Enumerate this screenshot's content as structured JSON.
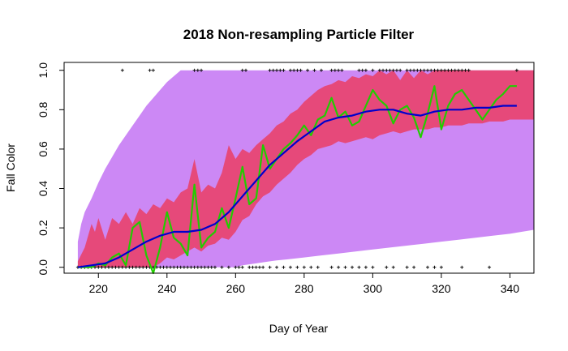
{
  "chart_data": {
    "type": "line",
    "title": "2018 Non-resampling Particle Filter",
    "xlabel": "Day of Year",
    "ylabel": "Fall Color",
    "xlim": [
      210,
      347
    ],
    "ylim": [
      -0.03,
      1.04
    ],
    "xticks": [
      220,
      240,
      260,
      280,
      300,
      320,
      340
    ],
    "yticks": [
      0.0,
      0.2,
      0.4,
      0.6,
      0.8,
      1.0
    ],
    "grid": false,
    "legend": "none",
    "colors": {
      "outer_band": "#cc88f5",
      "inner_band": "#e6497a",
      "observed": "#22cc00",
      "mean": "#0000cc",
      "points": "#000000"
    },
    "outer_band": {
      "x": [
        214,
        215,
        216,
        218,
        220,
        222,
        224,
        226,
        228,
        230,
        232,
        234,
        236,
        238,
        240,
        242,
        244,
        246,
        248,
        250,
        252,
        254,
        256,
        258,
        260,
        262,
        264,
        266,
        268,
        270,
        272,
        275,
        280,
        285,
        290,
        295,
        300,
        305,
        310,
        315,
        320,
        325,
        330,
        335,
        340,
        347
      ],
      "upper": [
        0.13,
        0.22,
        0.28,
        0.35,
        0.43,
        0.5,
        0.56,
        0.62,
        0.67,
        0.72,
        0.77,
        0.82,
        0.86,
        0.9,
        0.94,
        0.97,
        1.0,
        1.0,
        1.0,
        1.0,
        1.0,
        1.0,
        1.0,
        1.0,
        1.0,
        1.0,
        1.0,
        1.0,
        1.0,
        1.0,
        1.0,
        1.0,
        1.0,
        1.0,
        1.0,
        1.0,
        1.0,
        1.0,
        1.0,
        1.0,
        1.0,
        1.0,
        1.0,
        1.0,
        1.0,
        1.0
      ],
      "lower": [
        0.0,
        0.0,
        0.0,
        0.0,
        0.0,
        0.0,
        0.0,
        0.0,
        0.0,
        0.0,
        0.0,
        0.0,
        0.0,
        0.0,
        0.0,
        0.0,
        0.0,
        0.0,
        0.0,
        0.0,
        0.0,
        0.0,
        0.0,
        0.0,
        0.0,
        0.01,
        0.015,
        0.02,
        0.025,
        0.03,
        0.035,
        0.04,
        0.05,
        0.06,
        0.07,
        0.08,
        0.09,
        0.1,
        0.11,
        0.12,
        0.13,
        0.14,
        0.15,
        0.16,
        0.17,
        0.19
      ]
    },
    "inner_band": {
      "x": [
        214,
        216,
        218,
        219,
        220,
        222,
        224,
        226,
        228,
        230,
        232,
        234,
        236,
        238,
        240,
        242,
        244,
        246,
        248,
        250,
        252,
        254,
        256,
        258,
        260,
        262,
        264,
        266,
        268,
        270,
        272,
        274,
        276,
        278,
        280,
        282,
        284,
        286,
        288,
        290,
        292,
        294,
        296,
        298,
        300,
        302,
        304,
        306,
        308,
        310,
        312,
        314,
        316,
        318,
        320,
        322,
        324,
        326,
        328,
        330,
        332,
        334,
        336,
        338,
        340,
        342,
        347
      ],
      "upper": [
        0.03,
        0.1,
        0.22,
        0.18,
        0.25,
        0.14,
        0.25,
        0.22,
        0.28,
        0.22,
        0.3,
        0.27,
        0.32,
        0.3,
        0.35,
        0.33,
        0.38,
        0.4,
        0.55,
        0.38,
        0.42,
        0.4,
        0.48,
        0.62,
        0.55,
        0.6,
        0.58,
        0.62,
        0.65,
        0.68,
        0.72,
        0.74,
        0.78,
        0.8,
        0.84,
        0.87,
        0.9,
        0.92,
        0.93,
        0.95,
        0.94,
        0.97,
        0.96,
        0.98,
        0.97,
        1.0,
        0.98,
        1.0,
        0.95,
        1.0,
        0.96,
        1.0,
        0.98,
        1.0,
        1.0,
        1.0,
        1.0,
        1.0,
        1.0,
        1.0,
        1.0,
        1.0,
        1.0,
        1.0,
        1.0,
        1.0,
        1.0
      ],
      "lower": [
        0.0,
        0.0,
        0.0,
        0.0,
        0.0,
        0.0,
        0.0,
        0.0,
        0.0,
        0.0,
        0.0,
        0.0,
        0.0,
        0.02,
        0.05,
        0.04,
        0.06,
        0.08,
        0.1,
        0.08,
        0.11,
        0.12,
        0.15,
        0.14,
        0.18,
        0.24,
        0.26,
        0.32,
        0.36,
        0.38,
        0.42,
        0.45,
        0.48,
        0.52,
        0.55,
        0.57,
        0.6,
        0.61,
        0.62,
        0.64,
        0.63,
        0.64,
        0.65,
        0.66,
        0.65,
        0.67,
        0.68,
        0.69,
        0.68,
        0.69,
        0.7,
        0.7,
        0.7,
        0.71,
        0.71,
        0.72,
        0.72,
        0.72,
        0.73,
        0.73,
        0.73,
        0.74,
        0.74,
        0.74,
        0.75,
        0.75,
        0.75
      ]
    },
    "series": [
      {
        "key": "observed",
        "x": [
          214,
          216,
          218,
          220,
          222,
          224,
          226,
          228,
          230,
          232,
          234,
          236,
          238,
          240,
          242,
          244,
          246,
          248,
          250,
          252,
          254,
          256,
          258,
          260,
          262,
          264,
          266,
          268,
          270,
          272,
          274,
          276,
          278,
          280,
          282,
          284,
          286,
          288,
          290,
          292,
          294,
          296,
          298,
          300,
          302,
          304,
          306,
          308,
          310,
          312,
          314,
          316,
          318,
          320,
          322,
          324,
          326,
          328,
          330,
          332,
          334,
          336,
          338,
          340,
          342
        ],
        "values": [
          0.0,
          0.0,
          0.0,
          0.02,
          0.01,
          0.05,
          0.07,
          0.01,
          0.2,
          0.23,
          0.06,
          -0.03,
          0.1,
          0.28,
          0.15,
          0.12,
          0.06,
          0.42,
          0.1,
          0.15,
          0.18,
          0.3,
          0.2,
          0.35,
          0.51,
          0.32,
          0.35,
          0.62,
          0.5,
          0.55,
          0.6,
          0.63,
          0.67,
          0.72,
          0.67,
          0.75,
          0.77,
          0.86,
          0.76,
          0.79,
          0.72,
          0.74,
          0.82,
          0.9,
          0.85,
          0.82,
          0.73,
          0.8,
          0.82,
          0.76,
          0.66,
          0.78,
          0.92,
          0.7,
          0.82,
          0.88,
          0.9,
          0.85,
          0.8,
          0.75,
          0.8,
          0.85,
          0.88,
          0.92,
          0.92
        ]
      },
      {
        "key": "mean",
        "x": [
          214,
          218,
          222,
          226,
          230,
          234,
          238,
          242,
          246,
          250,
          254,
          258,
          262,
          266,
          270,
          274,
          278,
          282,
          286,
          290,
          294,
          298,
          302,
          306,
          310,
          314,
          318,
          322,
          326,
          330,
          334,
          338,
          342
        ],
        "values": [
          0.0,
          0.01,
          0.02,
          0.05,
          0.09,
          0.13,
          0.16,
          0.18,
          0.18,
          0.19,
          0.22,
          0.28,
          0.36,
          0.44,
          0.52,
          0.58,
          0.64,
          0.69,
          0.74,
          0.76,
          0.77,
          0.79,
          0.8,
          0.8,
          0.78,
          0.77,
          0.79,
          0.8,
          0.8,
          0.81,
          0.81,
          0.82,
          0.82
        ]
      }
    ],
    "points": {
      "x": [
        214,
        215,
        216,
        217,
        218,
        219,
        220,
        221,
        222,
        223,
        224,
        225,
        226,
        227,
        228,
        229,
        230,
        231,
        232,
        233,
        234,
        235,
        236,
        237,
        238,
        239,
        240,
        241,
        242,
        243,
        244,
        245,
        246,
        247,
        248,
        249,
        250,
        251,
        252,
        253,
        254,
        256,
        258,
        260,
        261,
        262,
        264,
        265,
        266,
        267,
        268,
        270,
        272,
        274,
        276,
        278,
        280,
        282,
        284,
        288,
        290,
        292,
        294,
        296,
        298,
        300,
        304,
        306,
        310,
        312,
        316,
        318,
        320,
        326,
        334,
        227,
        235,
        236,
        248,
        249,
        250,
        262,
        263,
        270,
        271,
        272,
        273,
        274,
        276,
        277,
        278,
        279,
        281,
        283,
        285,
        288,
        289,
        290,
        291,
        296,
        297,
        298,
        300,
        302,
        303,
        304,
        305,
        306,
        307,
        308,
        310,
        311,
        312,
        313,
        314,
        315,
        316,
        317,
        318,
        319,
        320,
        321,
        322,
        323,
        324,
        325,
        326,
        327,
        328,
        342
      ],
      "y": [
        0,
        0,
        0,
        0,
        0,
        0,
        0,
        0,
        0,
        0,
        0,
        0,
        0,
        0,
        0,
        0,
        0,
        0,
        0,
        0,
        0,
        0,
        0,
        0,
        0,
        0,
        0,
        0,
        0,
        0,
        0,
        0,
        0,
        0,
        0,
        0,
        0,
        0,
        0,
        0,
        0,
        0,
        0,
        0,
        0,
        0,
        0,
        0,
        0,
        0,
        0,
        0,
        0,
        0,
        0,
        0,
        0,
        0,
        0,
        0,
        0,
        0,
        0,
        0,
        0,
        0,
        0,
        0,
        0,
        0,
        0,
        0,
        0,
        0,
        0,
        1,
        1,
        1,
        1,
        1,
        1,
        1,
        1,
        1,
        1,
        1,
        1,
        1,
        1,
        1,
        1,
        1,
        1,
        1,
        1,
        1,
        1,
        1,
        1,
        1,
        1,
        1,
        1,
        1,
        1,
        1,
        1,
        1,
        1,
        1,
        1,
        1,
        1,
        1,
        1,
        1,
        1,
        1,
        1,
        1,
        1,
        1,
        1,
        1,
        1,
        1,
        1,
        1,
        1,
        1
      ]
    }
  }
}
